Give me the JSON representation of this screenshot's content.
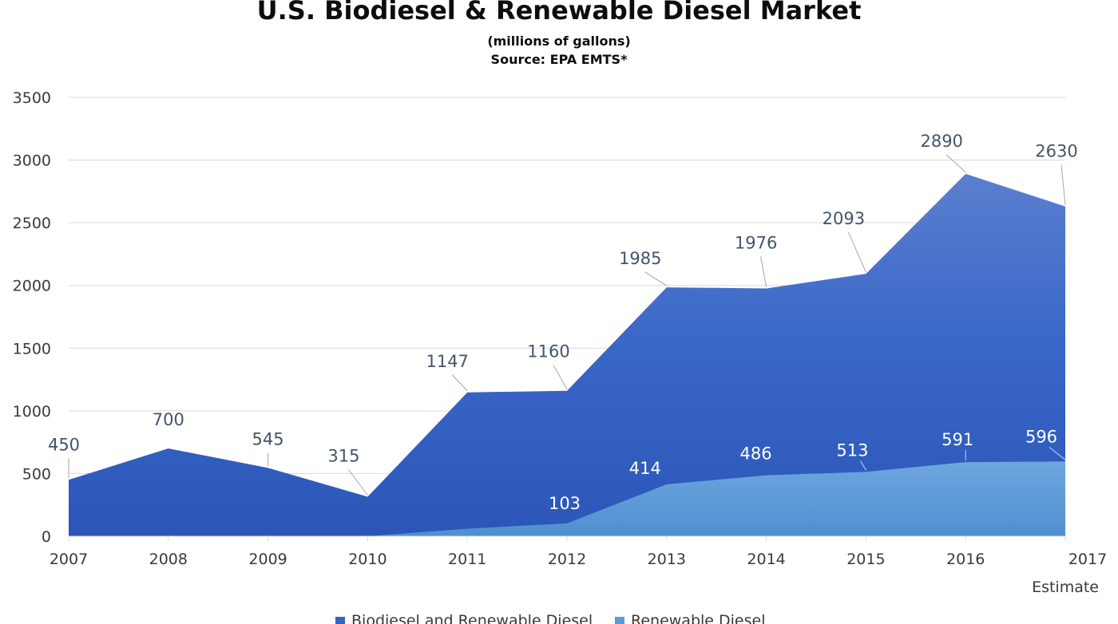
{
  "chart_data": {
    "type": "area",
    "title": "U.S. Biodiesel & Renewable Diesel Market",
    "subtitle": [
      "(millions of gallons)",
      "Source: EPA EMTS*"
    ],
    "categories": [
      "2007",
      "2008",
      "2009",
      "2010",
      "2011",
      "2012",
      "2013",
      "2014",
      "2015",
      "2016",
      "2017"
    ],
    "category_note": {
      "category": "2017",
      "text": "Estimate"
    },
    "ylim": [
      0,
      3500
    ],
    "yticks": [
      0,
      500,
      1000,
      1500,
      2000,
      2500,
      3000,
      3500
    ],
    "grid": true,
    "legend_position": "bottom",
    "series": [
      {
        "name": "Biodiesel and Renewable Diesel",
        "color": "#3563c4",
        "values": [
          450,
          700,
          545,
          315,
          1147,
          1160,
          1985,
          1976,
          2093,
          2890,
          2630
        ],
        "labels": [
          "450",
          "700",
          "545",
          "315",
          "1147",
          "1160",
          "1985",
          "1976",
          "2093",
          "2890",
          "2630"
        ]
      },
      {
        "name": "Renewable Diesel",
        "color": "#5b9bd5",
        "values": [
          0,
          0,
          0,
          0,
          60,
          103,
          414,
          486,
          513,
          591,
          596
        ],
        "labels": [
          null,
          null,
          null,
          null,
          null,
          "103",
          "414",
          "486",
          "513",
          "591",
          "596"
        ]
      }
    ]
  }
}
